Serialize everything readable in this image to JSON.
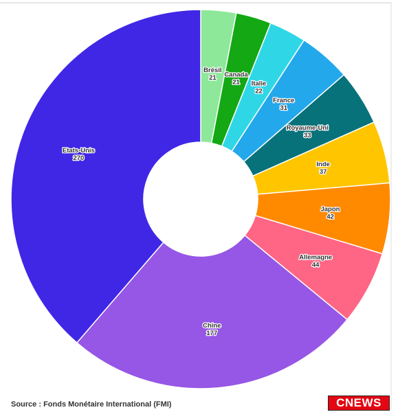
{
  "chart_data": {
    "type": "pie",
    "donut": true,
    "categories": [
      "Brésil",
      "Canada",
      "Italie",
      "France",
      "Royaume-Uni",
      "Inde",
      "Japon",
      "Allemagne",
      "Chine",
      "Etats-Unis"
    ],
    "values": [
      21,
      21,
      22,
      31,
      33,
      37,
      42,
      44,
      177,
      270
    ],
    "colors": [
      "#8de89a",
      "#14a814",
      "#2fd7e6",
      "#23a8ec",
      "#08727a",
      "#ffc600",
      "#ff8a00",
      "#ff6584",
      "#9656e6",
      "#4027e6"
    ]
  },
  "footer": {
    "source": "Source : Fonds Monétaire International (FMI)",
    "logo_text": "CNEWS"
  }
}
